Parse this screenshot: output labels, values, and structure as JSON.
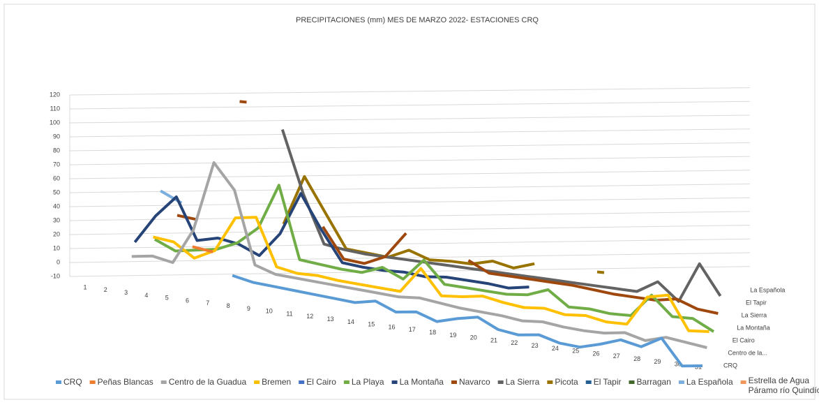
{
  "chart_data": {
    "type": "line3d",
    "title": "PRECIPITACIONES (mm) MES DE MARZO  2022- ESTACIONES CRQ",
    "categories": [
      "1",
      "2",
      "3",
      "4",
      "5",
      "6",
      "7",
      "8",
      "9",
      "10",
      "11",
      "12",
      "13",
      "14",
      "15",
      "16",
      "17",
      "18",
      "19",
      "20",
      "21",
      "22",
      "23",
      "24",
      "25",
      "26",
      "27",
      "28",
      "29",
      "30",
      "31"
    ],
    "depth_labels": [
      "CRQ",
      null,
      "Centro de la...",
      null,
      "El Cairo",
      null,
      "La Montaña",
      null,
      "La Sierra",
      null,
      "El Tapir",
      null,
      "La Española",
      null
    ],
    "ylim": [
      -10,
      120
    ],
    "yticks": [
      -10,
      0,
      10,
      20,
      30,
      40,
      50,
      60,
      70,
      80,
      90,
      100,
      110,
      120
    ],
    "grid": true,
    "series": [
      {
        "name": "CRQ",
        "color": "#5b9bd5",
        "values": [
          null,
          null,
          null,
          null,
          null,
          null,
          null,
          5,
          2,
          1,
          0,
          -1,
          -2,
          -3,
          0,
          -6,
          -4,
          -9,
          -5,
          -2,
          -9,
          -11,
          -9,
          -13,
          -14,
          -10,
          -5,
          -8,
          0,
          -18,
          -16
        ]
      },
      {
        "name": "Peñas Blancas",
        "color": "#ed7d31",
        "values": [
          null,
          null,
          null,
          null,
          null,
          20,
          18,
          null,
          null,
          null,
          null,
          null,
          null,
          null,
          null,
          null,
          null,
          null,
          null,
          null,
          null,
          null,
          null,
          null,
          null,
          null,
          null,
          null,
          null,
          null,
          null
        ]
      },
      {
        "name": "Centro de la Guadua",
        "color": "#a5a5a5",
        "values": [
          null,
          null,
          6,
          8,
          5,
          30,
          80,
          62,
          10,
          5,
          4,
          3,
          2,
          1,
          0,
          -1,
          0,
          -2,
          -4,
          -5,
          -6,
          -8,
          -7,
          -9,
          -10,
          -10,
          -8,
          -12,
          -8,
          -10,
          -12
        ]
      },
      {
        "name": "Bremen",
        "color": "#ffc000",
        "values": [
          null,
          null,
          null,
          20,
          18,
          8,
          15,
          40,
          42,
          8,
          5,
          5,
          3,
          2,
          1,
          0,
          18,
          0,
          1,
          3,
          0,
          -2,
          -1,
          -4,
          -3,
          -6,
          -6,
          15,
          18,
          -6,
          -5
        ]
      },
      {
        "name": "El Cairo",
        "color": "#4472c4",
        "values": [
          null,
          null,
          null,
          null,
          null,
          null,
          null,
          null,
          null,
          null,
          null,
          null,
          null,
          null,
          null,
          null,
          null,
          null,
          null,
          null,
          null,
          null,
          null,
          null,
          null,
          null,
          null,
          null,
          null,
          null,
          null
        ]
      },
      {
        "name": "La Playa",
        "color": "#70ad47",
        "values": [
          null,
          null,
          null,
          15,
          8,
          10,
          12,
          18,
          30,
          62,
          10,
          8,
          6,
          5,
          10,
          3,
          18,
          2,
          1,
          0,
          -1,
          0,
          5,
          -6,
          -6,
          -8,
          -8,
          8,
          -6,
          -6,
          -14
        ]
      },
      {
        "name": "La Montaña",
        "color": "#264478",
        "values": [
          null,
          null,
          10,
          30,
          45,
          15,
          18,
          15,
          8,
          25,
          55,
          30,
          8,
          6,
          5,
          5,
          3,
          4,
          3,
          2,
          0,
          2,
          null,
          null,
          null,
          null,
          null,
          null,
          null,
          null,
          null
        ]
      },
      {
        "name": "Navarco",
        "color": "#9e480e",
        "values": [
          null,
          null,
          null,
          null,
          30,
          28,
          null,
          115,
          null,
          null,
          null,
          30,
          8,
          6,
          12,
          30,
          null,
          null,
          14,
          6,
          5,
          4,
          3,
          2,
          0,
          -2,
          -3,
          -4,
          -2,
          -8,
          -10
        ]
      },
      {
        "name": "La Sierra",
        "color": "#636363",
        "values": [
          null,
          null,
          null,
          null,
          null,
          null,
          null,
          null,
          null,
          95,
          50,
          15,
          12,
          10,
          9,
          8,
          7,
          6,
          5,
          4,
          3,
          2,
          1,
          0,
          -1,
          -2,
          -3,
          5,
          -8,
          20,
          -2
        ]
      },
      {
        "name": "Picota",
        "color": "#997300",
        "values": [
          null,
          null,
          null,
          null,
          null,
          null,
          null,
          null,
          null,
          25,
          60,
          35,
          10,
          8,
          6,
          12,
          6,
          6,
          5,
          8,
          4,
          8,
          null,
          null,
          5,
          null,
          null,
          null,
          null,
          null,
          null
        ]
      },
      {
        "name": "El Tapir",
        "color": "#255e91",
        "values": [
          null,
          null,
          null,
          null,
          null,
          null,
          null,
          null,
          null,
          null,
          null,
          null,
          null,
          null,
          null,
          null,
          null,
          null,
          null,
          null,
          null,
          null,
          null,
          null,
          null,
          null,
          null,
          null,
          null,
          null,
          null
        ]
      },
      {
        "name": "Barragan",
        "color": "#43682b",
        "values": [
          null,
          null,
          null,
          null,
          null,
          null,
          null,
          null,
          null,
          null,
          null,
          null,
          null,
          null,
          null,
          null,
          null,
          null,
          null,
          null,
          null,
          null,
          null,
          null,
          null,
          null,
          null,
          null,
          null,
          null,
          null
        ]
      },
      {
        "name": "La Española",
        "color": "#7cafdd",
        "values": [
          null,
          null,
          null,
          38,
          30,
          null,
          null,
          null,
          null,
          null,
          null,
          null,
          null,
          null,
          null,
          null,
          null,
          null,
          null,
          null,
          null,
          null,
          null,
          null,
          null,
          null,
          null,
          null,
          null,
          null,
          null
        ]
      },
      {
        "name": "Estrella de Agua Páramo río Quindío",
        "color": "#f1975a",
        "values": [
          null,
          null,
          null,
          null,
          null,
          null,
          null,
          null,
          null,
          null,
          null,
          null,
          null,
          null,
          null,
          null,
          null,
          null,
          null,
          null,
          null,
          null,
          null,
          null,
          null,
          null,
          null,
          null,
          null,
          null,
          null
        ]
      }
    ]
  }
}
